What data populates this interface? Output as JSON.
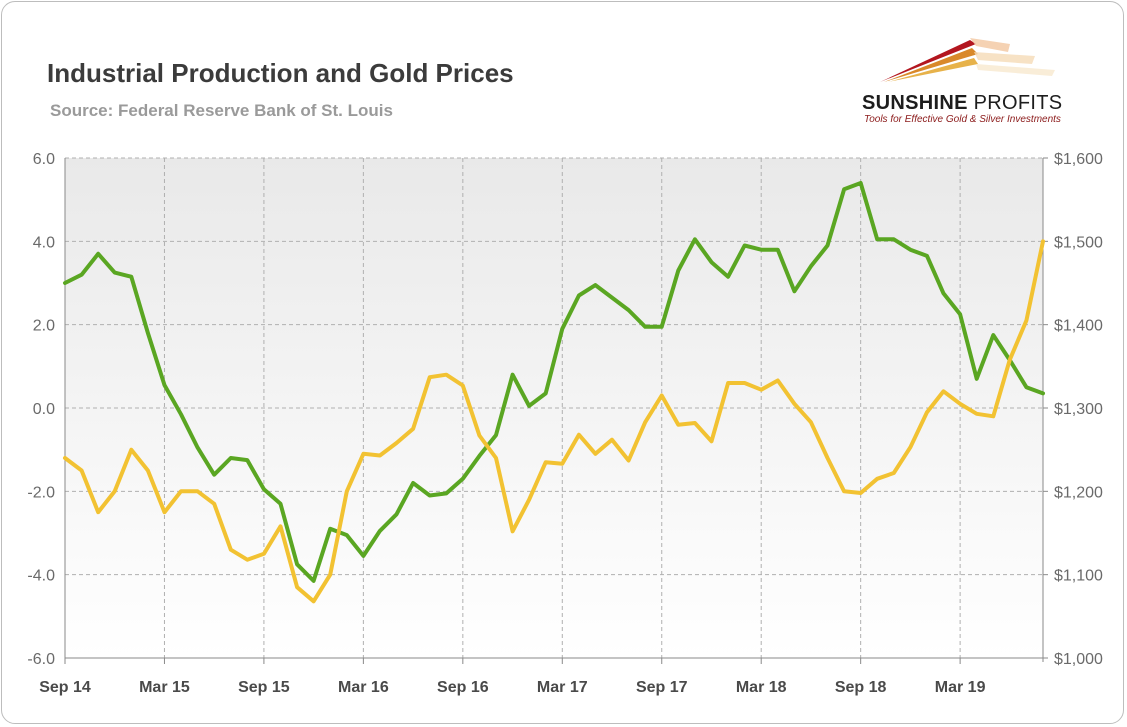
{
  "header": {
    "title": "Industrial Production and Gold Prices",
    "subtitle": "Source: Federal Reserve Bank of St. Louis"
  },
  "logo": {
    "name_bold": "SUNSHINE",
    "name_regular": " PROFITS",
    "tagline": "Tools for Effective Gold & Silver Investments"
  },
  "colors": {
    "industrial_production": "#5aa622",
    "gold_price": "#f2c232",
    "grid": "#b0b0b0",
    "axis": "#8a8a8a"
  },
  "chart_data": {
    "type": "line",
    "title": "Industrial Production and Gold Prices",
    "x_tick_labels": [
      "Sep 14",
      "Mar 15",
      "Sep 15",
      "Mar 16",
      "Sep 16",
      "Mar 17",
      "Sep 17",
      "Mar 18",
      "Sep 18",
      "Mar 19"
    ],
    "x_tick_positions": [
      0,
      6,
      12,
      18,
      24,
      30,
      36,
      42,
      48,
      54
    ],
    "x_range": [
      0,
      59
    ],
    "y_left": {
      "range": [
        -6,
        6
      ],
      "ticks": [
        -6,
        -4,
        -2,
        0,
        2,
        4,
        6
      ],
      "tick_labels": [
        "-6.0",
        "-4.0",
        "-2.0",
        "0.0",
        "2.0",
        "4.0",
        "6.0"
      ]
    },
    "y_right": {
      "range": [
        1000,
        1600
      ],
      "ticks": [
        1000,
        1100,
        1200,
        1300,
        1400,
        1500,
        1600
      ],
      "tick_labels": [
        "$1,000",
        "$1,100",
        "$1,200",
        "$1,300",
        "$1,400",
        "$1,500",
        "$1,600"
      ]
    },
    "grid": true,
    "series": [
      {
        "axis": "left",
        "color": "#5aa622",
        "values": [
          3.0,
          3.2,
          3.7,
          3.25,
          3.15,
          1.8,
          0.55,
          -0.15,
          -0.95,
          -1.6,
          -1.2,
          -1.25,
          -1.95,
          -2.3,
          -3.75,
          -4.15,
          -2.9,
          -3.05,
          -3.55,
          -2.95,
          -2.55,
          -1.8,
          -2.1,
          -2.05,
          -1.7,
          -1.15,
          -0.65,
          0.8,
          0.05,
          0.35,
          1.9,
          2.7,
          2.95,
          2.65,
          2.35,
          1.95,
          1.95,
          3.3,
          4.05,
          3.5,
          3.15,
          3.9,
          3.8,
          3.8,
          2.8,
          3.4,
          3.9,
          5.25,
          5.4,
          4.05,
          4.05,
          3.8,
          3.65,
          2.75,
          2.25,
          0.7,
          1.75,
          1.15,
          0.5,
          0.35
        ]
      },
      {
        "axis": "right",
        "color": "#f2c232",
        "values": [
          1240,
          1225,
          1175,
          1200,
          1250,
          1225,
          1175,
          1200,
          1200,
          1185,
          1130,
          1118,
          1125,
          1158,
          1085,
          1068,
          1100,
          1200,
          1245,
          1243,
          1258,
          1275,
          1337,
          1340,
          1327,
          1267,
          1240,
          1152,
          1190,
          1235,
          1233,
          1268,
          1245,
          1262,
          1237,
          1283,
          1315,
          1280,
          1282,
          1260,
          1330,
          1330,
          1322,
          1333,
          1305,
          1283,
          1240,
          1200,
          1198,
          1215,
          1222,
          1253,
          1295,
          1320,
          1305,
          1293,
          1290,
          1358,
          1405,
          1500
        ]
      }
    ]
  }
}
